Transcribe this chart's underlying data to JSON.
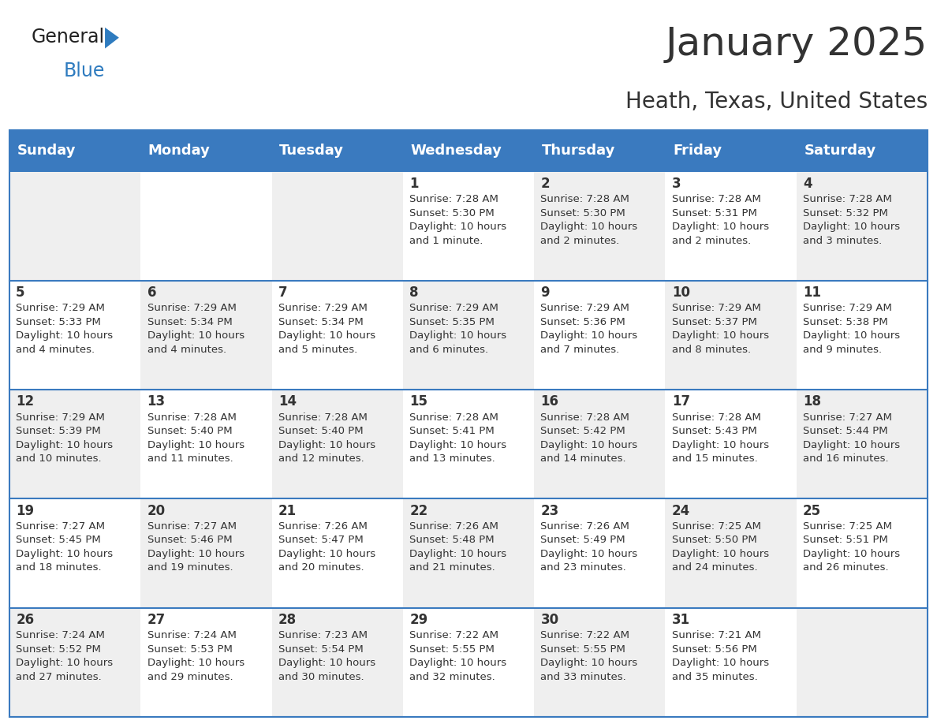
{
  "title": "January 2025",
  "subtitle": "Heath, Texas, United States",
  "header_bg": "#3a7abf",
  "header_text_color": "#ffffff",
  "cell_bg_light": "#efefef",
  "cell_bg_white": "#ffffff",
  "day_num_color": "#333333",
  "content_color": "#333333",
  "separator_color": "#3a7abf",
  "days_of_week": [
    "Sunday",
    "Monday",
    "Tuesday",
    "Wednesday",
    "Thursday",
    "Friday",
    "Saturday"
  ],
  "calendar": [
    [
      {
        "day": 0,
        "text": ""
      },
      {
        "day": 0,
        "text": ""
      },
      {
        "day": 0,
        "text": ""
      },
      {
        "day": 1,
        "text": "Sunrise: 7:28 AM\nSunset: 5:30 PM\nDaylight: 10 hours\nand 1 minute."
      },
      {
        "day": 2,
        "text": "Sunrise: 7:28 AM\nSunset: 5:30 PM\nDaylight: 10 hours\nand 2 minutes."
      },
      {
        "day": 3,
        "text": "Sunrise: 7:28 AM\nSunset: 5:31 PM\nDaylight: 10 hours\nand 2 minutes."
      },
      {
        "day": 4,
        "text": "Sunrise: 7:28 AM\nSunset: 5:32 PM\nDaylight: 10 hours\nand 3 minutes."
      }
    ],
    [
      {
        "day": 5,
        "text": "Sunrise: 7:29 AM\nSunset: 5:33 PM\nDaylight: 10 hours\nand 4 minutes."
      },
      {
        "day": 6,
        "text": "Sunrise: 7:29 AM\nSunset: 5:34 PM\nDaylight: 10 hours\nand 4 minutes."
      },
      {
        "day": 7,
        "text": "Sunrise: 7:29 AM\nSunset: 5:34 PM\nDaylight: 10 hours\nand 5 minutes."
      },
      {
        "day": 8,
        "text": "Sunrise: 7:29 AM\nSunset: 5:35 PM\nDaylight: 10 hours\nand 6 minutes."
      },
      {
        "day": 9,
        "text": "Sunrise: 7:29 AM\nSunset: 5:36 PM\nDaylight: 10 hours\nand 7 minutes."
      },
      {
        "day": 10,
        "text": "Sunrise: 7:29 AM\nSunset: 5:37 PM\nDaylight: 10 hours\nand 8 minutes."
      },
      {
        "day": 11,
        "text": "Sunrise: 7:29 AM\nSunset: 5:38 PM\nDaylight: 10 hours\nand 9 minutes."
      }
    ],
    [
      {
        "day": 12,
        "text": "Sunrise: 7:29 AM\nSunset: 5:39 PM\nDaylight: 10 hours\nand 10 minutes."
      },
      {
        "day": 13,
        "text": "Sunrise: 7:28 AM\nSunset: 5:40 PM\nDaylight: 10 hours\nand 11 minutes."
      },
      {
        "day": 14,
        "text": "Sunrise: 7:28 AM\nSunset: 5:40 PM\nDaylight: 10 hours\nand 12 minutes."
      },
      {
        "day": 15,
        "text": "Sunrise: 7:28 AM\nSunset: 5:41 PM\nDaylight: 10 hours\nand 13 minutes."
      },
      {
        "day": 16,
        "text": "Sunrise: 7:28 AM\nSunset: 5:42 PM\nDaylight: 10 hours\nand 14 minutes."
      },
      {
        "day": 17,
        "text": "Sunrise: 7:28 AM\nSunset: 5:43 PM\nDaylight: 10 hours\nand 15 minutes."
      },
      {
        "day": 18,
        "text": "Sunrise: 7:27 AM\nSunset: 5:44 PM\nDaylight: 10 hours\nand 16 minutes."
      }
    ],
    [
      {
        "day": 19,
        "text": "Sunrise: 7:27 AM\nSunset: 5:45 PM\nDaylight: 10 hours\nand 18 minutes."
      },
      {
        "day": 20,
        "text": "Sunrise: 7:27 AM\nSunset: 5:46 PM\nDaylight: 10 hours\nand 19 minutes."
      },
      {
        "day": 21,
        "text": "Sunrise: 7:26 AM\nSunset: 5:47 PM\nDaylight: 10 hours\nand 20 minutes."
      },
      {
        "day": 22,
        "text": "Sunrise: 7:26 AM\nSunset: 5:48 PM\nDaylight: 10 hours\nand 21 minutes."
      },
      {
        "day": 23,
        "text": "Sunrise: 7:26 AM\nSunset: 5:49 PM\nDaylight: 10 hours\nand 23 minutes."
      },
      {
        "day": 24,
        "text": "Sunrise: 7:25 AM\nSunset: 5:50 PM\nDaylight: 10 hours\nand 24 minutes."
      },
      {
        "day": 25,
        "text": "Sunrise: 7:25 AM\nSunset: 5:51 PM\nDaylight: 10 hours\nand 26 minutes."
      }
    ],
    [
      {
        "day": 26,
        "text": "Sunrise: 7:24 AM\nSunset: 5:52 PM\nDaylight: 10 hours\nand 27 minutes."
      },
      {
        "day": 27,
        "text": "Sunrise: 7:24 AM\nSunset: 5:53 PM\nDaylight: 10 hours\nand 29 minutes."
      },
      {
        "day": 28,
        "text": "Sunrise: 7:23 AM\nSunset: 5:54 PM\nDaylight: 10 hours\nand 30 minutes."
      },
      {
        "day": 29,
        "text": "Sunrise: 7:22 AM\nSunset: 5:55 PM\nDaylight: 10 hours\nand 32 minutes."
      },
      {
        "day": 30,
        "text": "Sunrise: 7:22 AM\nSunset: 5:55 PM\nDaylight: 10 hours\nand 33 minutes."
      },
      {
        "day": 31,
        "text": "Sunrise: 7:21 AM\nSunset: 5:56 PM\nDaylight: 10 hours\nand 35 minutes."
      },
      {
        "day": 0,
        "text": ""
      }
    ]
  ],
  "logo_general_color": "#222222",
  "logo_blue_color": "#2e7bbf",
  "title_fontsize": 36,
  "subtitle_fontsize": 20,
  "header_fontsize": 13,
  "day_num_fontsize": 12,
  "content_fontsize": 9.5
}
